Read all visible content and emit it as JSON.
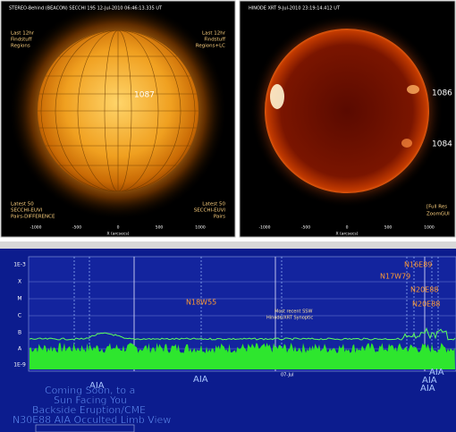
{
  "left_panel": {
    "title": "STEREO-Behind (BEACON) SECCHI 195 12-Jul-2010 06:46:13.335 UT",
    "top_left": [
      "Last 12hr",
      "Findstuff",
      "Regions"
    ],
    "top_right": [
      "Last 12hr",
      "Findstuff",
      "Regions+LC"
    ],
    "region_label": "1087",
    "bottom_left": [
      "Latest 50",
      "SECCHI-EUVI",
      "Pairs-DIFFERENCE"
    ],
    "bottom_right": [
      "Latest 50",
      "SECCHI-EUVI",
      "Pairs"
    ],
    "x_ticks": [
      "-1000",
      "-500",
      "0",
      "500",
      "1000"
    ],
    "x_label": "X (arcsecs)"
  },
  "right_panel": {
    "title": "HINODE XRT 9-Jul-2010 23:19:14.412 UT",
    "region_labels": [
      "1086",
      "1084"
    ],
    "bottom_right": [
      "[Full Res",
      "ZoomGUI"
    ],
    "x_ticks": [
      "-1000",
      "-500",
      "0",
      "500",
      "1000"
    ],
    "x_label": "X (arcsecs)"
  },
  "goes_plot": {
    "y_labels": [
      "1E-3",
      "X",
      "M",
      "C",
      "B",
      "A",
      "1E-9"
    ],
    "regions": [
      "N18W55",
      "N17W79",
      "N16E89",
      "N20E88",
      "N20E88"
    ],
    "note": [
      "Most recent SSW",
      "Hinode/XRT Synoptic"
    ],
    "aia_labels": [
      "AIA",
      "AIA",
      "AIA",
      "AIA",
      "AIA"
    ],
    "date_label": "07-Jul"
  },
  "promo": {
    "lines": [
      "Coming Soon, to a",
      "Sun Facing You",
      "Backside Eruption/CME",
      "N30E88 AIA Occulted Limb View"
    ]
  }
}
